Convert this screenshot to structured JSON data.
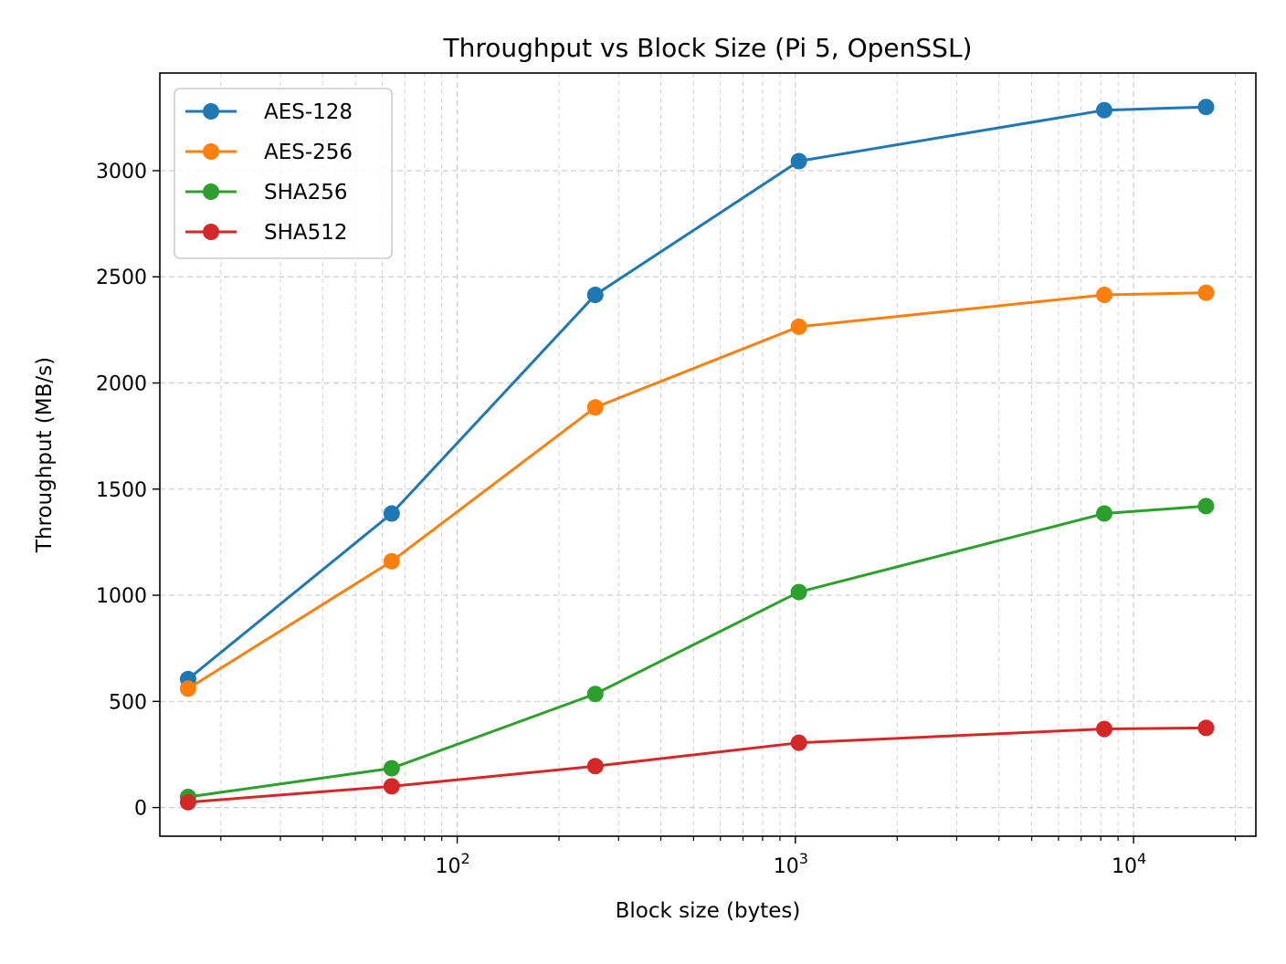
{
  "chart_data": {
    "type": "line",
    "title": "Throughput vs Block Size (Pi 5, OpenSSL)",
    "xlabel": "Block size (bytes)",
    "ylabel": "Throughput (MB/s)",
    "xscale": "log",
    "xlim": [
      13.2,
      23000
    ],
    "ylim": [
      -135,
      3460
    ],
    "x": [
      16,
      64,
      256,
      1024,
      8192,
      16384
    ],
    "x_ticks": [
      {
        "value": 100,
        "base": "10",
        "exp": "2"
      },
      {
        "value": 1000,
        "base": "10",
        "exp": "3"
      },
      {
        "value": 10000,
        "base": "10",
        "exp": "4"
      }
    ],
    "y_ticks": [
      0,
      500,
      1000,
      1500,
      2000,
      2500,
      3000
    ],
    "grid": true,
    "legend_position": "top-left",
    "series": [
      {
        "name": "AES-128",
        "color": "#1f77b4",
        "values": [
          605,
          1385,
          2415,
          3045,
          3285,
          3300
        ]
      },
      {
        "name": "AES-256",
        "color": "#ff7f0e",
        "values": [
          560,
          1160,
          1885,
          2265,
          2415,
          2425
        ]
      },
      {
        "name": "SHA256",
        "color": "#2ca02c",
        "values": [
          50,
          185,
          535,
          1015,
          1385,
          1420
        ]
      },
      {
        "name": "SHA512",
        "color": "#d62728",
        "values": [
          25,
          100,
          195,
          305,
          370,
          375
        ]
      }
    ]
  }
}
